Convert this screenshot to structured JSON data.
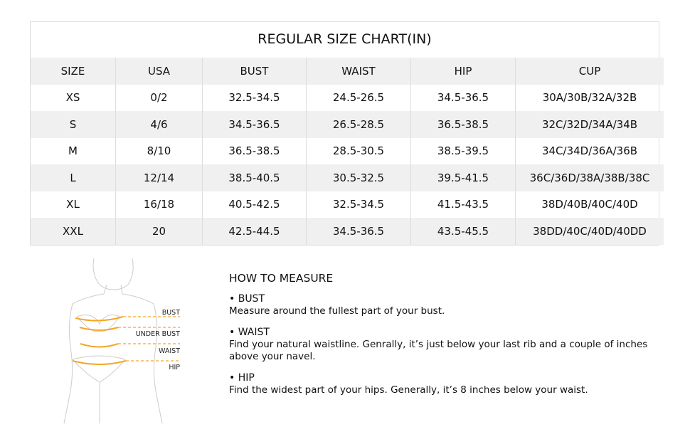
{
  "chart": {
    "title": "REGULAR SIZE CHART(IN)",
    "headers": [
      "SIZE",
      "USA",
      "BUST",
      "WAIST",
      "HIP",
      "CUP"
    ],
    "rows": [
      [
        "XS",
        "0/2",
        "32.5-34.5",
        "24.5-26.5",
        "34.5-36.5",
        "30A/30B/32A/32B"
      ],
      [
        "S",
        "4/6",
        "34.5-36.5",
        "26.5-28.5",
        "36.5-38.5",
        "32C/32D/34A/34B"
      ],
      [
        "M",
        "8/10",
        "36.5-38.5",
        "28.5-30.5",
        "38.5-39.5",
        "34C/34D/36A/36B"
      ],
      [
        "L",
        "12/14",
        "38.5-40.5",
        "30.5-32.5",
        "39.5-41.5",
        "36C/36D/38A/38B/38C"
      ],
      [
        "XL",
        "16/18",
        "40.5-42.5",
        "32.5-34.5",
        "41.5-43.5",
        "38D/40B/40C/40D"
      ],
      [
        "XXL",
        "20",
        "42.5-44.5",
        "34.5-36.5",
        "43.5-45.5",
        "38DD/40C/40D/40DD"
      ]
    ]
  },
  "figure": {
    "labels": [
      "BUST",
      "UNDER BUST",
      "WAIST",
      "HIP"
    ],
    "accent": "#f5a623"
  },
  "measure": {
    "title": "HOW TO MEASURE",
    "items": [
      {
        "heading": "• BUST",
        "text": "Measure around the fullest part of your bust."
      },
      {
        "heading": "• WAIST",
        "text": "Find your natural waistline. Genrally, it’s just below your last rib and a couple of inches above your navel."
      },
      {
        "heading": "• HIP",
        "text": "Find the widest part of your hips. Generally, it’s 8 inches below your waist."
      }
    ]
  }
}
